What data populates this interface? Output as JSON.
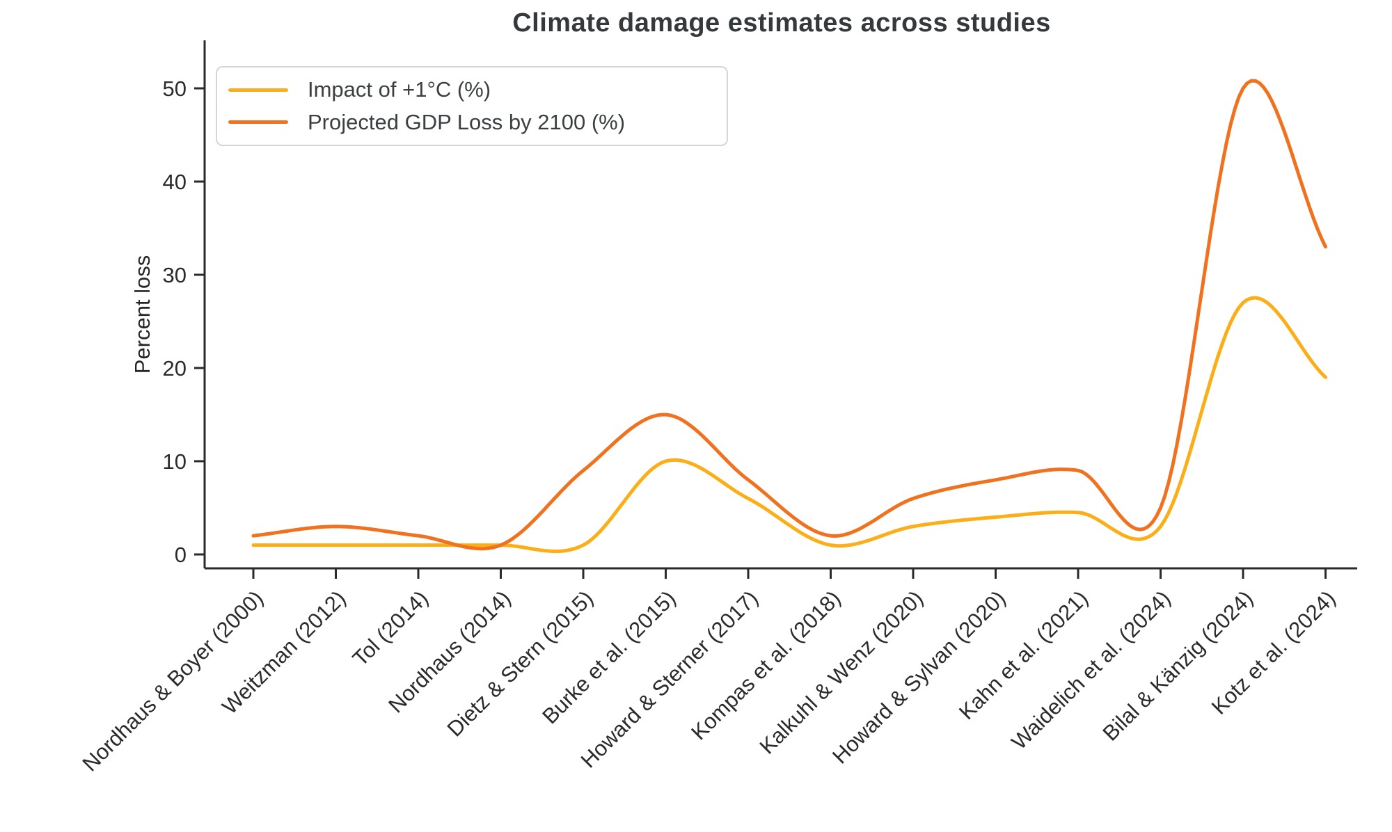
{
  "chart_data": {
    "type": "line",
    "title": "Climate damage estimates across studies",
    "xlabel": "",
    "ylabel": "Percent loss",
    "categories": [
      "Nordhaus & Boyer (2000)",
      "Weitzman (2012)",
      "Tol (2014)",
      "Nordhaus (2014)",
      "Dietz & Stern (2015)",
      "Burke et al. (2015)",
      "Howard & Sterner (2017)",
      "Kompas et al. (2018)",
      "Kalkuhl & Wenz (2020)",
      "Howard & Sylvan (2020)",
      "Kahn et al. (2021)",
      "Waidelich et al. (2024)",
      "Bilal & Känzig (2024)",
      "Kotz et al. (2024)"
    ],
    "series": [
      {
        "name": "Impact of +1°C (%)",
        "color": "#FBAE17",
        "values": [
          1,
          1,
          1,
          1,
          1,
          10,
          6,
          1,
          3,
          4,
          4.5,
          3,
          27,
          19
        ]
      },
      {
        "name": "Projected GDP Loss by 2100 (%)",
        "color": "#F0711E",
        "values": [
          2,
          3,
          2,
          1,
          9,
          15,
          8,
          2,
          6,
          8,
          9,
          5,
          50,
          33
        ]
      }
    ],
    "yticks": [
      0,
      10,
      20,
      30,
      40,
      50
    ],
    "ylim": [
      -1.5,
      54
    ],
    "grid": false,
    "legend_position": "upper-left",
    "line_style": "smooth-spline",
    "x_tick_rotation_deg": 45
  }
}
